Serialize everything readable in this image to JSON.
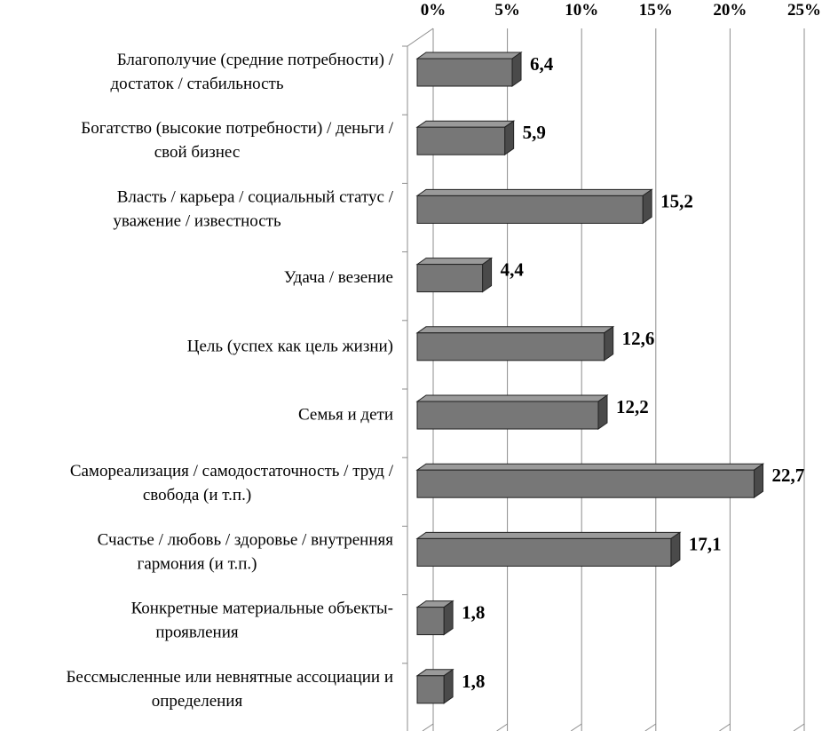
{
  "colors": {
    "bar_front": "#777777",
    "bar_top": "#9a9a9a",
    "bar_side": "#4a4a4a",
    "bar_edge": "#222222",
    "grid": "#8c8c8c",
    "background": "#ffffff"
  },
  "chart_data": {
    "type": "bar",
    "orientation": "horizontal",
    "style": "3d",
    "x_axis_position": "top",
    "xlim": [
      0,
      25
    ],
    "x_ticks": [
      0,
      5,
      10,
      15,
      20,
      25
    ],
    "x_tick_labels": [
      "0%",
      "5%",
      "10%",
      "15%",
      "20%",
      "25%"
    ],
    "grid": true,
    "categories": [
      [
        "Благополучие (средние потребности) /",
        "достаток / стабильность"
      ],
      [
        "Богатство (высокие потребности) / деньги /",
        "свой бизнес"
      ],
      [
        "Власть  / карьера / социальный статус /",
        "уважение / известность"
      ],
      [
        "Удача / везение"
      ],
      [
        "Цель  (успех как цель жизни)"
      ],
      [
        "Семья и дети"
      ],
      [
        "Самореализация / самодостаточность / труд /",
        "свобода (и т.п.)"
      ],
      [
        "Счастье  /  любовь  /  здоровье  /  внутренняя",
        "гармония (и т.п.)"
      ],
      [
        "Конкретные материальные объекты-",
        "проявления"
      ],
      [
        "Бессмысленные или невнятные ассоциации и",
        "определения"
      ]
    ],
    "values": [
      6.4,
      5.9,
      15.2,
      4.4,
      12.6,
      12.2,
      22.7,
      17.1,
      1.8,
      1.8
    ],
    "value_labels": [
      "6,4",
      "5,9",
      "15,2",
      "4,4",
      "12,6",
      "12,2",
      "22,7",
      "17,1",
      "1,8",
      "1,8"
    ]
  }
}
